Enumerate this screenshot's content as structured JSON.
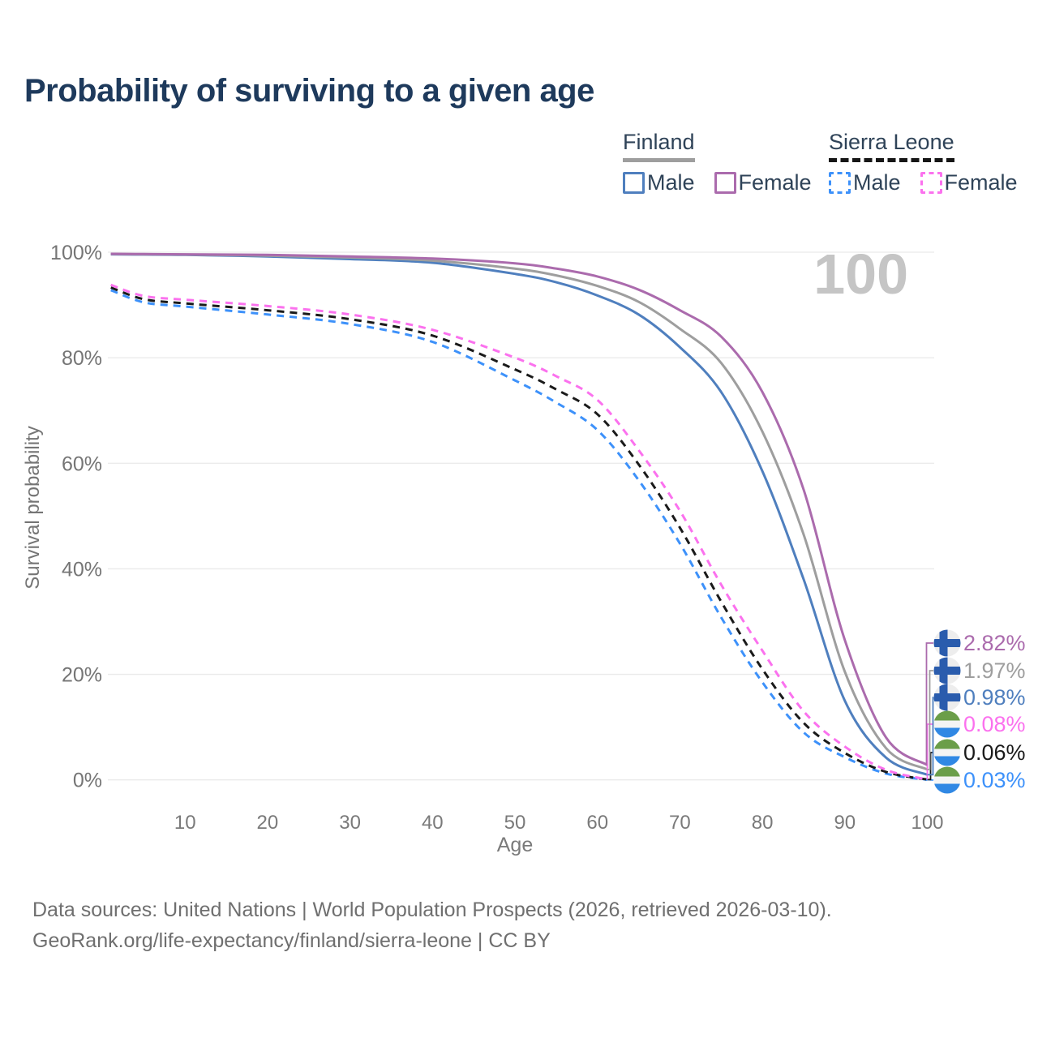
{
  "title": "Probability of surviving to a given age",
  "legend": {
    "groups": [
      {
        "name": "Finland",
        "line_style": "solid",
        "underline_color": "#9e9e9e",
        "items": [
          {
            "label": "Male",
            "color": "#4f7fbe"
          },
          {
            "label": "Female",
            "color": "#ab6bad"
          }
        ]
      },
      {
        "name": "Sierra Leone",
        "line_style": "dashed",
        "underline_color": "#161616",
        "items": [
          {
            "label": "Male",
            "color": "#3d91fa"
          },
          {
            "label": "Female",
            "color": "#fb71ee"
          }
        ]
      }
    ]
  },
  "chart_data": {
    "type": "line",
    "title": "Probability of surviving to a given age",
    "xlabel": "Age",
    "ylabel": "Survival probability",
    "xlim": [
      1,
      100
    ],
    "ylim": [
      0,
      100
    ],
    "grid": "horizontal",
    "age_indicator": "100",
    "x_ticks": [
      10,
      20,
      30,
      40,
      50,
      60,
      70,
      80,
      90,
      100
    ],
    "y_ticks": [
      {
        "value": 0,
        "label": "0%"
      },
      {
        "value": 20,
        "label": "20%"
      },
      {
        "value": 40,
        "label": "40%"
      },
      {
        "value": 60,
        "label": "60%"
      },
      {
        "value": 80,
        "label": "80%"
      },
      {
        "value": 100,
        "label": "100%"
      }
    ],
    "x": [
      1,
      5,
      10,
      20,
      30,
      40,
      50,
      55,
      60,
      65,
      70,
      75,
      80,
      85,
      90,
      95,
      100
    ],
    "series": [
      {
        "name": "Sierra Leone Male",
        "country": "Sierra Leone",
        "sex": "Male",
        "color": "#3d91fa",
        "dashed": true,
        "flag": "sierra-leone",
        "end_label": "0.03%",
        "label_row": 5,
        "values": [
          92.8,
          90.5,
          89.7,
          88.2,
          86.4,
          83.0,
          75.7,
          71.5,
          66.3,
          56.8,
          44.8,
          30.8,
          18.5,
          9.0,
          4.3,
          1.2,
          0.03
        ]
      },
      {
        "name": "Sierra Leone Both sexes",
        "country": "Sierra Leone",
        "sex": "Both",
        "color": "#1a1a1a",
        "dashed": true,
        "flag": "sierra-leone",
        "end_label": "0.06%",
        "label_row": 4,
        "values": [
          93.3,
          91.1,
          90.3,
          89.0,
          87.3,
          84.2,
          77.8,
          74.0,
          69.3,
          59.8,
          47.8,
          33.8,
          21.0,
          10.8,
          5.1,
          1.5,
          0.06
        ]
      },
      {
        "name": "Sierra Leone Female",
        "country": "Sierra Leone",
        "sex": "Female",
        "color": "#fb71ee",
        "dashed": true,
        "flag": "sierra-leone",
        "end_label": "0.08%",
        "label_row": 3,
        "values": [
          93.8,
          91.7,
          91.0,
          89.8,
          88.2,
          85.3,
          80.0,
          76.5,
          72.0,
          62.5,
          51.0,
          37.0,
          24.5,
          13.0,
          6.3,
          1.9,
          0.08
        ]
      },
      {
        "name": "Finland Male",
        "country": "Finland",
        "sex": "Male",
        "color": "#4f7fbe",
        "dashed": false,
        "flag": "finland",
        "end_label": "0.98%",
        "label_row": 2,
        "values": [
          99.6,
          99.55,
          99.5,
          99.2,
          98.7,
          98.0,
          95.9,
          94.3,
          91.8,
          88.2,
          82.0,
          73.5,
          58.5,
          38.0,
          15.0,
          4.2,
          0.98
        ]
      },
      {
        "name": "Finland Both sexes",
        "country": "Finland",
        "sex": "Both",
        "color": "#9e9e9e",
        "dashed": false,
        "flag": "finland",
        "end_label": "1.97%",
        "label_row": 1,
        "values": [
          99.65,
          99.6,
          99.55,
          99.35,
          99.0,
          98.4,
          96.9,
          95.6,
          93.6,
          90.6,
          85.5,
          79.0,
          66.0,
          46.5,
          20.5,
          6.0,
          1.97
        ]
      },
      {
        "name": "Finland Female",
        "country": "Finland",
        "sex": "Female",
        "color": "#ab6bad",
        "dashed": false,
        "flag": "finland",
        "end_label": "2.82%",
        "label_row": 0,
        "values": [
          99.7,
          99.65,
          99.6,
          99.5,
          99.2,
          98.8,
          97.9,
          96.9,
          95.4,
          92.9,
          89.0,
          84.0,
          73.5,
          55.0,
          26.5,
          8.0,
          2.82
        ]
      }
    ],
    "flag_colors": {
      "finland_bg": "#ededed",
      "finland_cross": "#2a5cad",
      "sierra_leone_green": "#6b9e49",
      "sierra_leone_white": "#f4f4f4",
      "sierra_leone_blue": "#3088e4"
    }
  },
  "source": {
    "line1": "Data sources: United Nations | World Population Prospects (2026, retrieved 2026-03-10).",
    "line2": "GeoRank.org/life-expectancy/finland/sierra-leone | CC BY"
  }
}
